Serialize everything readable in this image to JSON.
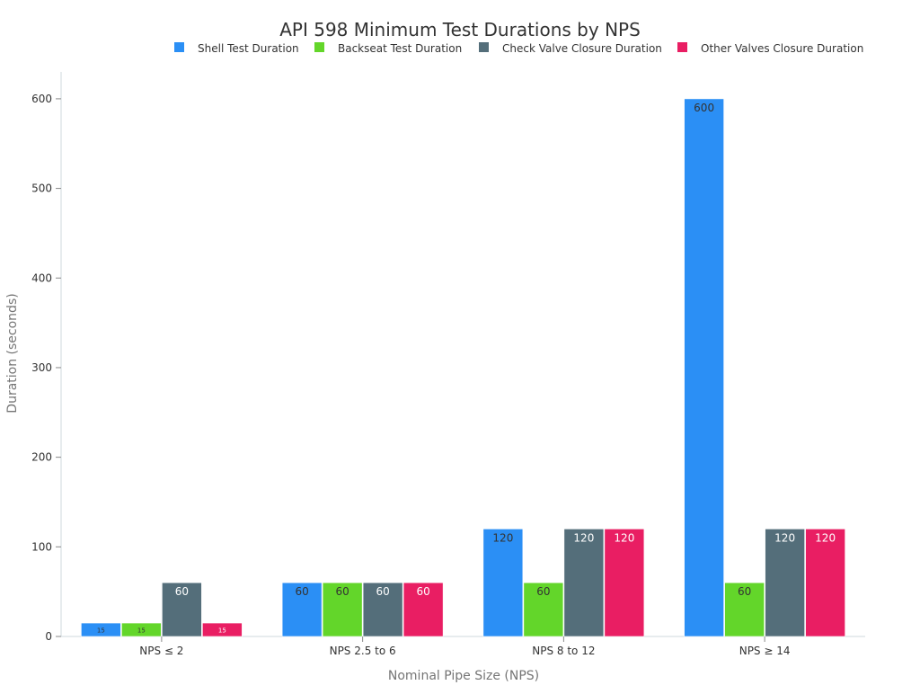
{
  "chart_data": {
    "type": "bar",
    "title": "API 598 Minimum Test Durations by NPS",
    "xlabel": "Nominal Pipe Size (NPS)",
    "ylabel": "Duration (seconds)",
    "categories": [
      "NPS ≤ 2",
      "NPS 2.5 to 6",
      "NPS 8 to 12",
      "NPS ≥ 14"
    ],
    "ylim": [
      0,
      630
    ],
    "yticks": [
      0,
      100,
      200,
      300,
      400,
      500,
      600
    ],
    "grid": false,
    "legend_position": "top",
    "series": [
      {
        "name": "Shell Test Duration",
        "values": [
          15,
          60,
          120,
          600
        ],
        "color": "#2b8ff5"
      },
      {
        "name": "Backseat Test Duration",
        "values": [
          15,
          60,
          60,
          60
        ],
        "color": "#63d62a"
      },
      {
        "name": "Check Valve Closure Duration",
        "values": [
          60,
          60,
          120,
          120
        ],
        "color": "#546e7a"
      },
      {
        "name": "Other Valves Closure Duration",
        "values": [
          15,
          60,
          120,
          120
        ],
        "color": "#e91e63"
      }
    ]
  }
}
